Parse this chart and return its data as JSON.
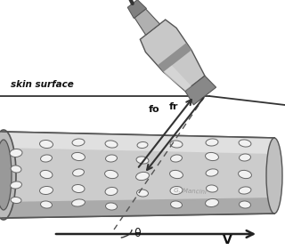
{
  "bg_color": "#ffffff",
  "skin_label": "skin surface",
  "fo_label": "fo",
  "fr_label": "fr",
  "theta_label": "θ",
  "V_label": "V",
  "arrow_color": "#333333",
  "dashed_color": "#555555",
  "vessel_body_color": "#cccccc",
  "vessel_highlight": "#e0e0e0",
  "vessel_shadow": "#aaaaaa",
  "vessel_edge": "#555555",
  "cell_face": "#f2f2f2",
  "cell_edge": "#666666",
  "transducer_body": "#c8c8c8",
  "transducer_dark": "#888888",
  "transducer_edge": "#555555",
  "cable_color": "#444444",
  "skin_line_color": "#333333"
}
